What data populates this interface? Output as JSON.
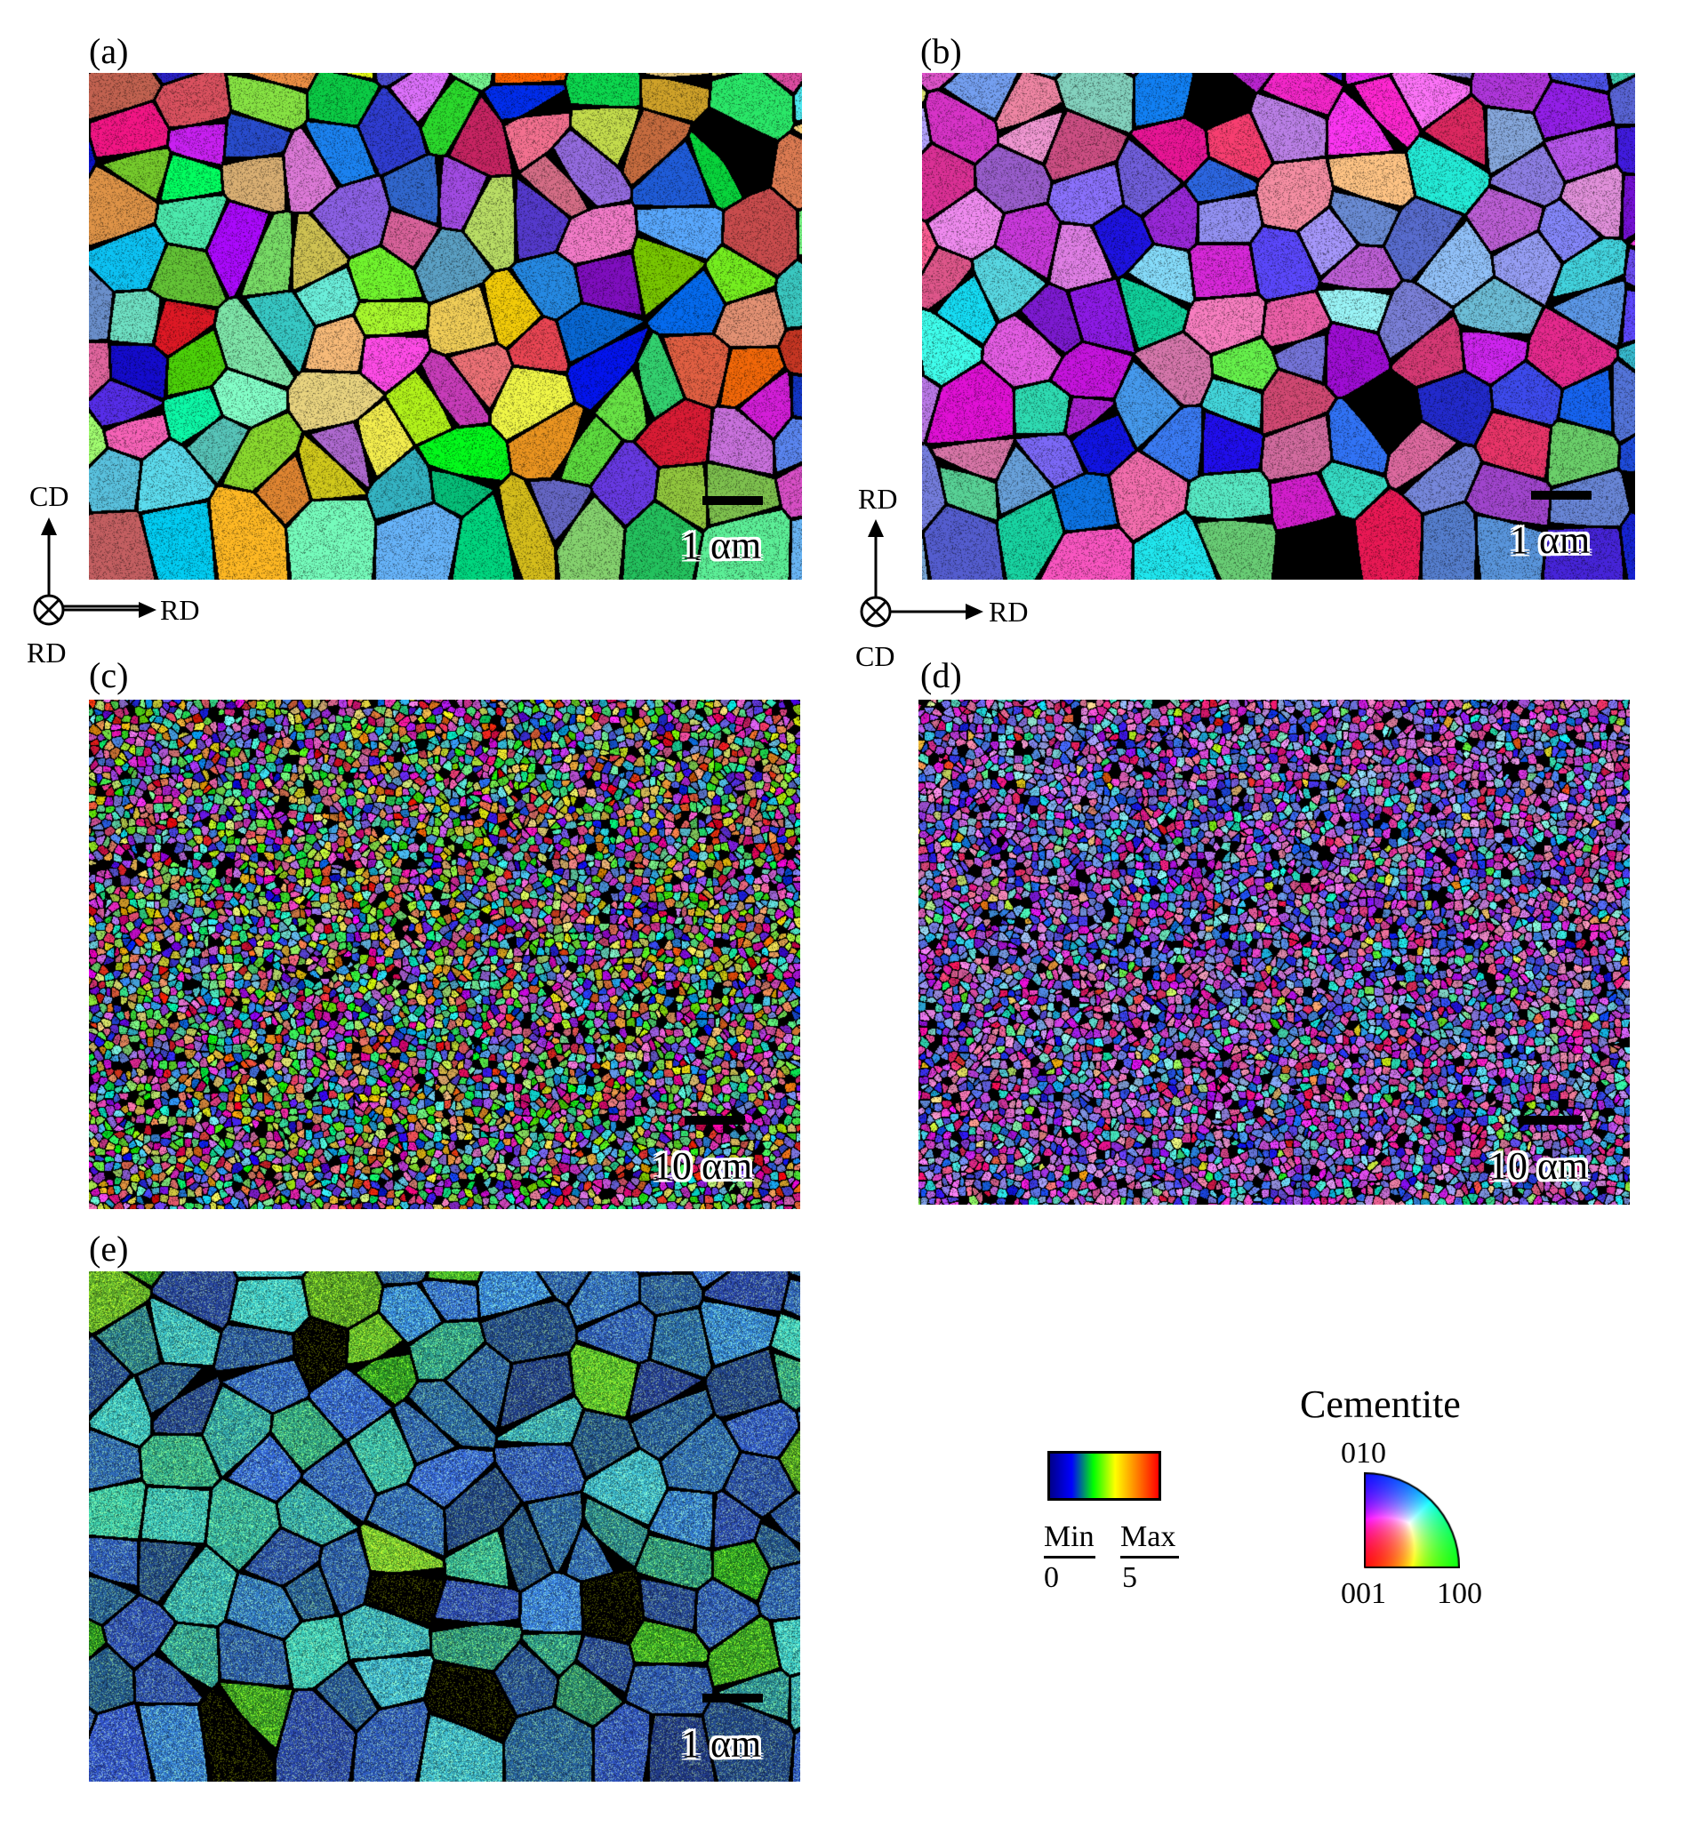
{
  "panels": [
    {
      "label": "(a)",
      "scale": "1 αm",
      "style": "ipf",
      "palette": "ipf-all",
      "grain": "coarse"
    },
    {
      "label": "(b)",
      "scale": "1 αm",
      "style": "ipf",
      "palette": "ipf-bluepink",
      "grain": "coarse"
    },
    {
      "label": "(c)",
      "scale": "10 αm",
      "style": "fine",
      "palette": "ipf-all",
      "grain": "fine"
    },
    {
      "label": "(d)",
      "scale": "10 αm",
      "style": "fine",
      "palette": "ipf-bluepink",
      "grain": "fine"
    },
    {
      "label": "(e)",
      "scale": "1 αm",
      "style": "kam",
      "palette": "kam",
      "grain": "coarse"
    }
  ],
  "axes_left": {
    "up": "CD",
    "right": "RD",
    "normal": "RD"
  },
  "axes_right": {
    "up": "RD",
    "right": "RD",
    "normal": "CD"
  },
  "color_bar": {
    "min_label": "Min",
    "max_label": "Max",
    "min_value": "0",
    "max_value": "5",
    "colors": [
      "#00008b",
      "#0000ff",
      "#00ff00",
      "#ffff00",
      "#ff8000",
      "#ff0000"
    ]
  },
  "ipf_key": {
    "title": "Cementite",
    "top_label": "010",
    "left_label": "001",
    "right_label": "100"
  }
}
